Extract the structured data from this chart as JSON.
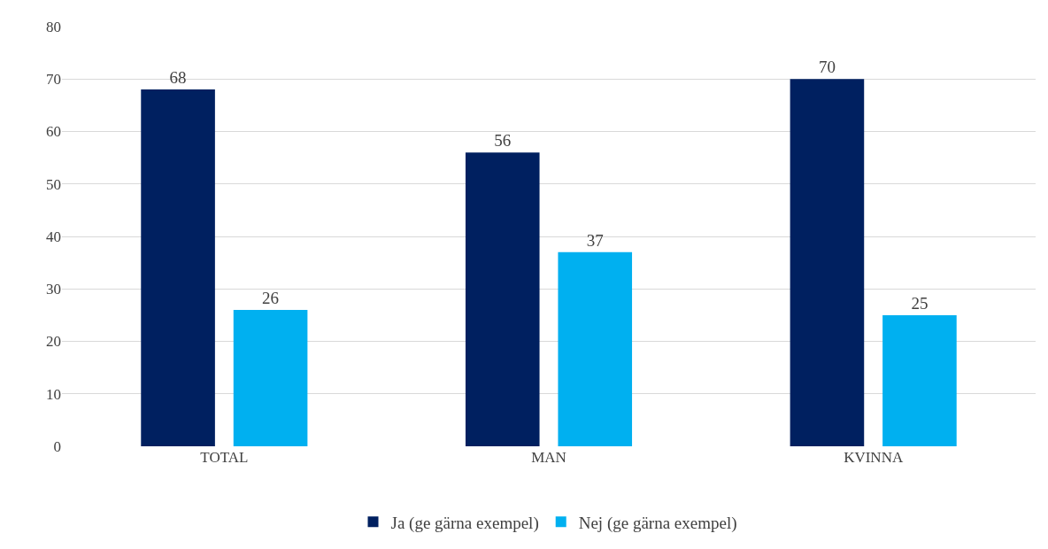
{
  "chart_data": {
    "type": "bar",
    "categories": [
      "TOTAL",
      "MAN",
      "KVINNA"
    ],
    "series": [
      {
        "name": "Ja (ge gärna exempel)",
        "color": "#002060",
        "values": [
          68,
          56,
          70
        ]
      },
      {
        "name": "Nej (ge gärna exempel)",
        "color": "#00b0f0",
        "values": [
          26,
          37,
          25
        ]
      }
    ],
    "ylim": [
      0,
      80
    ],
    "yticks": [
      0,
      10,
      20,
      30,
      40,
      50,
      60,
      70,
      80
    ],
    "grid": "y",
    "legend": "bottom",
    "data_labels": true
  }
}
